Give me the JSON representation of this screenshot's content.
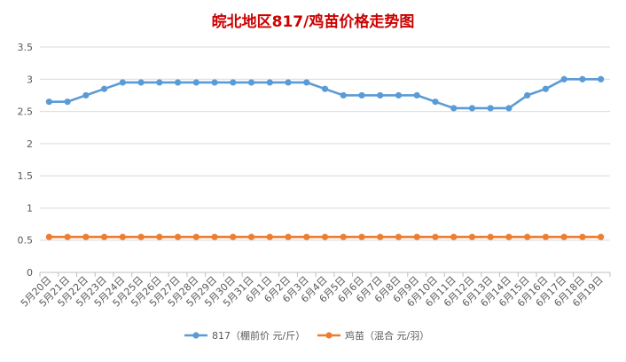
{
  "chart_data": {
    "type": "line",
    "title": "皖北地区817/鸡苗价格走势图",
    "categories": [
      "5月20日",
      "5月21日",
      "5月22日",
      "5月23日",
      "5月24日",
      "5月25日",
      "5月26日",
      "5月27日",
      "5月28日",
      "5月29日",
      "5月30日",
      "5月31日",
      "6月1日",
      "6月2日",
      "6月3日",
      "6月4日",
      "6月5日",
      "6月6日",
      "6月7日",
      "6月8日",
      "6月9日",
      "6月10日",
      "6月11日",
      "6月12日",
      "6月13日",
      "6月14日",
      "6月15日",
      "6月16日",
      "6月17日",
      "6月18日",
      "6月19日"
    ],
    "series": [
      {
        "name": "817（棚前价 元/斤）",
        "color": "#5b9bd5",
        "values": [
          2.65,
          2.65,
          2.75,
          2.85,
          2.95,
          2.95,
          2.95,
          2.95,
          2.95,
          2.95,
          2.95,
          2.95,
          2.95,
          2.95,
          2.95,
          2.85,
          2.75,
          2.75,
          2.75,
          2.75,
          2.75,
          2.65,
          2.55,
          2.55,
          2.55,
          2.55,
          2.75,
          2.85,
          3.0,
          3.0,
          3.0
        ]
      },
      {
        "name": "鸡苗（混合 元/羽）",
        "color": "#ed7d31",
        "values": [
          0.55,
          0.55,
          0.55,
          0.55,
          0.55,
          0.55,
          0.55,
          0.55,
          0.55,
          0.55,
          0.55,
          0.55,
          0.55,
          0.55,
          0.55,
          0.55,
          0.55,
          0.55,
          0.55,
          0.55,
          0.55,
          0.55,
          0.55,
          0.55,
          0.55,
          0.55,
          0.55,
          0.55,
          0.55,
          0.55,
          0.55
        ]
      }
    ],
    "ylim": [
      0,
      3.5
    ],
    "yticks": [
      "0",
      "0.5",
      "1",
      "1.5",
      "2",
      "2.5",
      "3",
      "3.5"
    ],
    "grid": true,
    "legend": "bottom",
    "title_color": "#cc0000"
  }
}
